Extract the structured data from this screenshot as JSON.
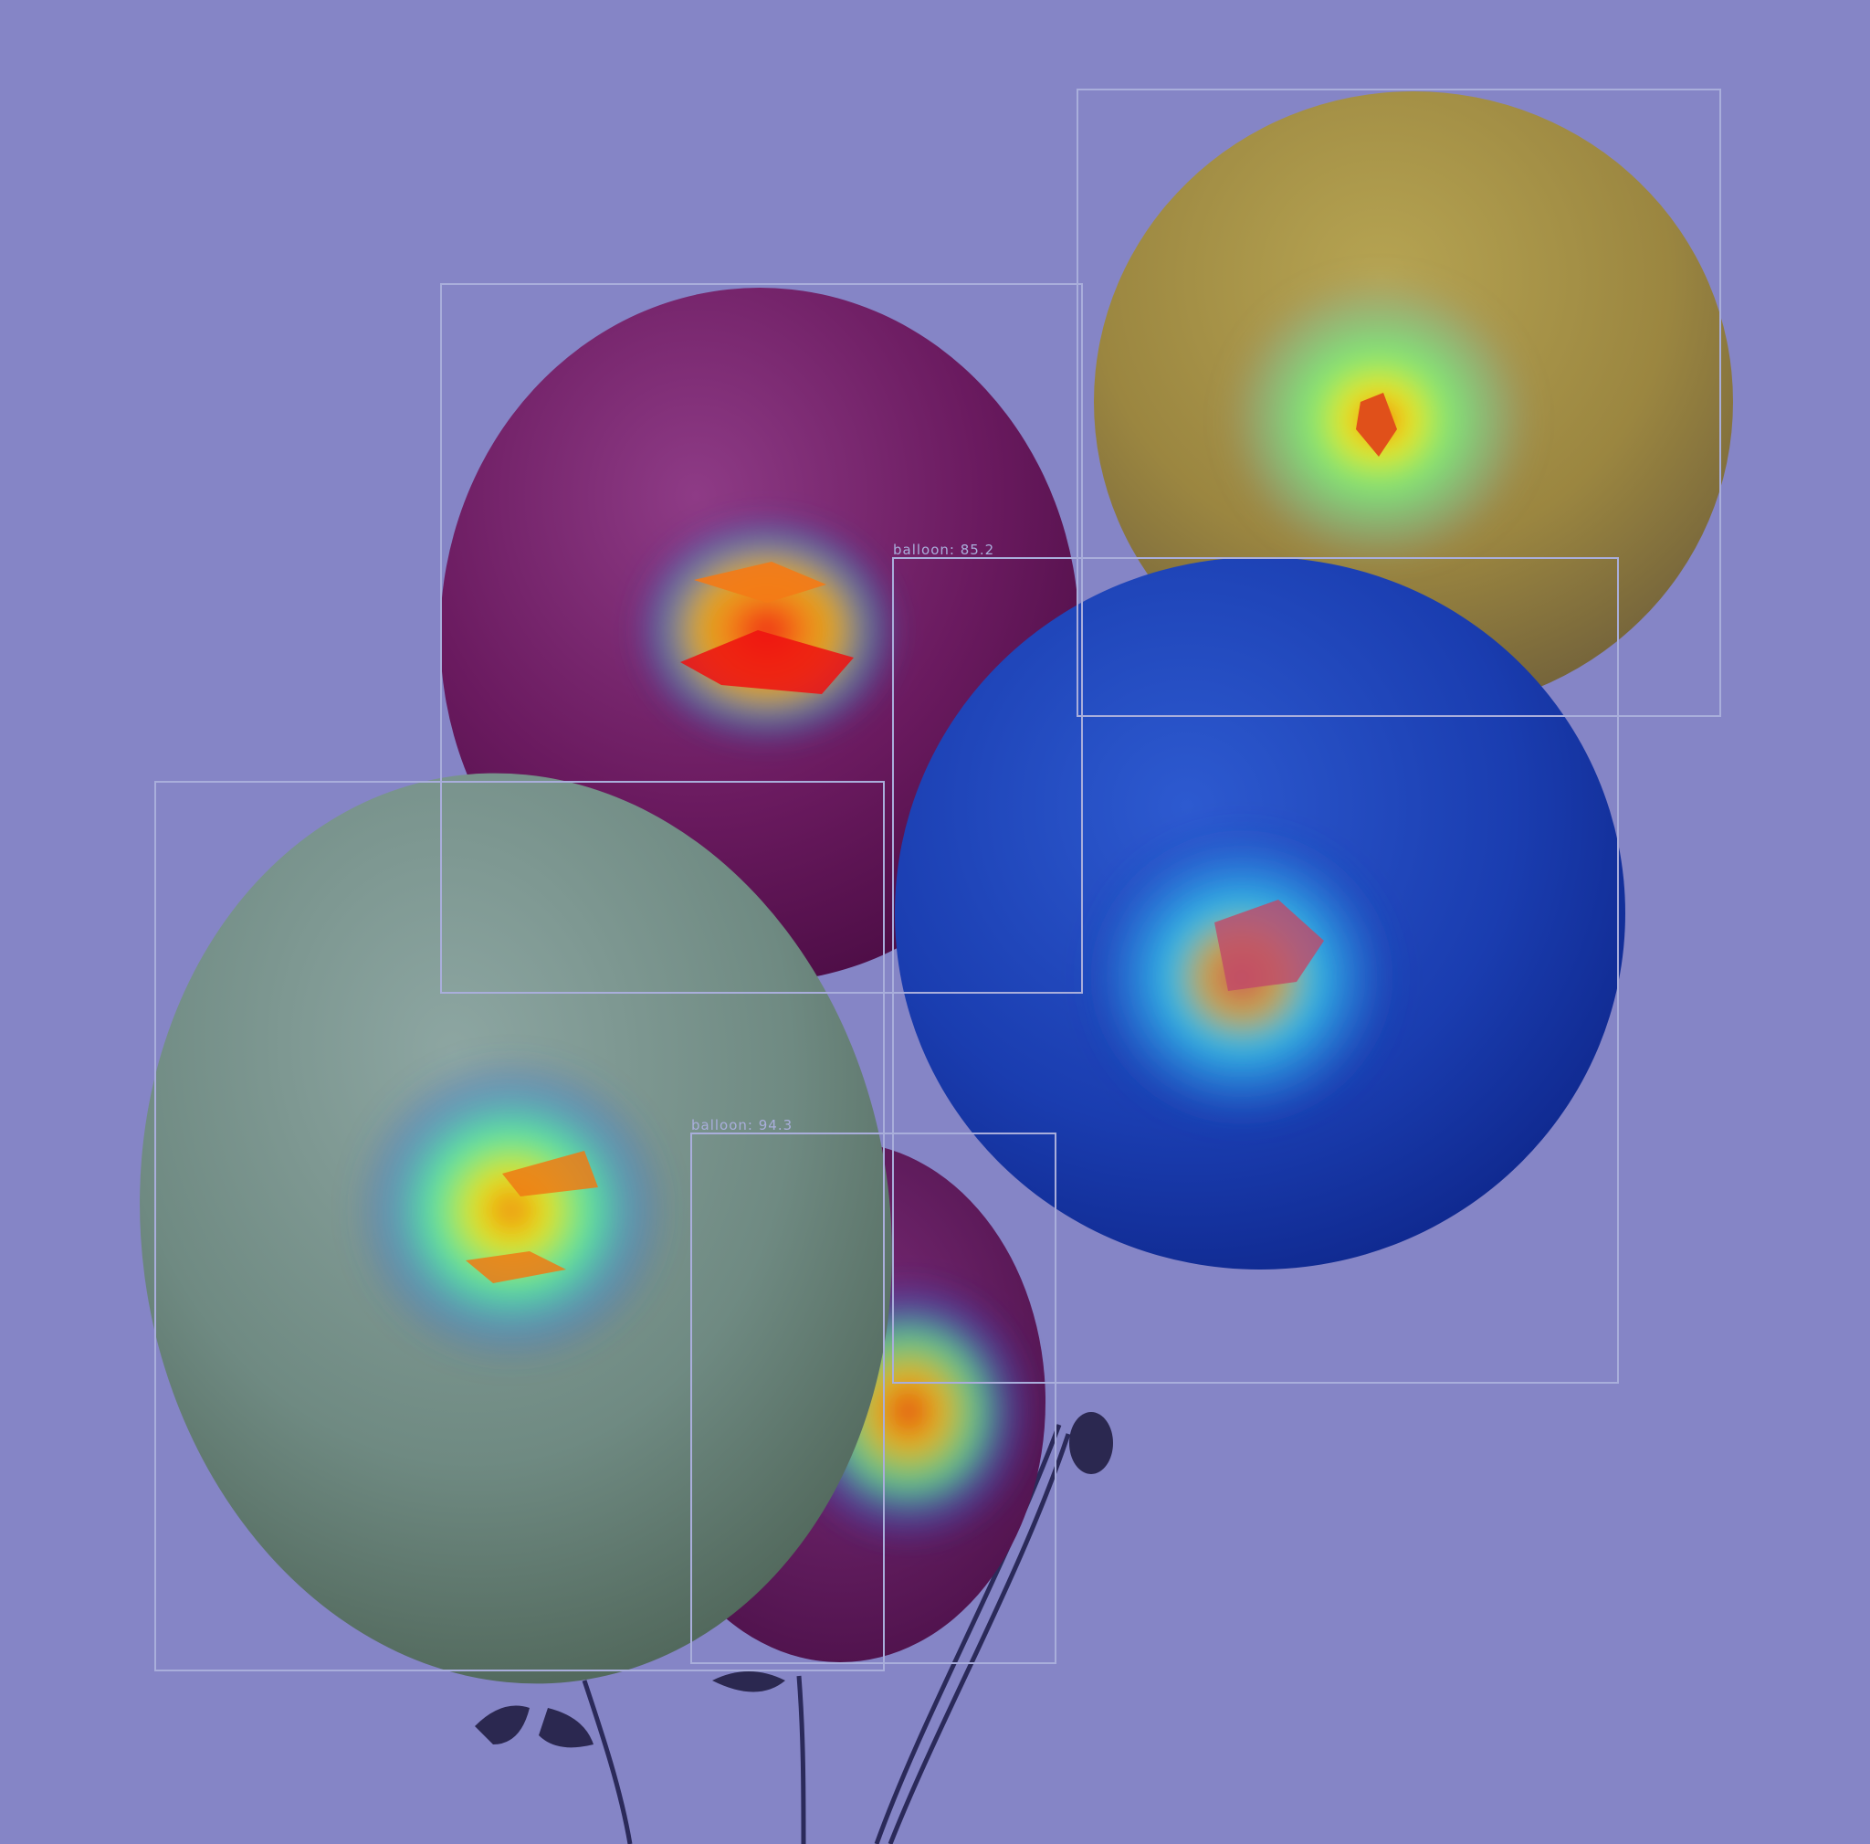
{
  "image": {
    "description_free": true,
    "background_color": "#8585c6"
  },
  "detections": [
    {
      "id": "det-green",
      "label": "",
      "balloon_color": "#9fb8a3"
    },
    {
      "id": "det-purple",
      "label": "",
      "balloon_color": "#8e2a6a"
    },
    {
      "id": "det-blue",
      "label": "balloon: 85.2",
      "balloon_color": "#1f3fb8"
    },
    {
      "id": "det-yellow",
      "label": "",
      "balloon_color": "#b8a048"
    },
    {
      "id": "det-small",
      "label": "balloon: 94.3",
      "balloon_color": "#7c1f6a"
    }
  ],
  "colors": {
    "box_stroke": "#a9aedb",
    "heat_hot": "#d81b1b",
    "heat_warm": "#f5c80e",
    "heat_mid": "#6cf07a",
    "heat_cool": "#1fb4e8"
  }
}
